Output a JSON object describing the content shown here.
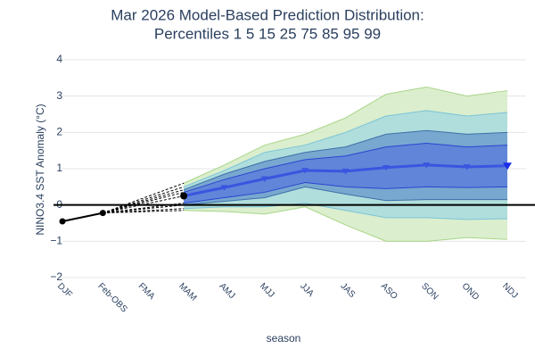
{
  "chart_data": {
    "type": "fan",
    "title": [
      "Mar 2026 Model-Based Prediction Distribution:",
      "Percentiles 1 5 15 25 75 85 95 99"
    ],
    "x_label": "season",
    "y_label": "NINO3.4 SST Anomaly (°C)",
    "categories": [
      "DJF",
      "Feb-OBS",
      "FMA",
      "MAM",
      "AMJ",
      "MJJ",
      "JJA",
      "JAS",
      "ASO",
      "SON",
      "OND",
      "NDJ"
    ],
    "ylim": [
      -2,
      4
    ],
    "yticks": [
      {
        "value": -2,
        "label": "−2"
      },
      {
        "value": -1,
        "label": "−1"
      },
      0,
      1,
      2,
      3,
      4
    ],
    "grid": true,
    "observed": {
      "color": "#000000",
      "values": [
        -0.45,
        -0.22,
        null,
        null,
        null,
        null,
        null,
        null,
        null,
        null,
        null,
        null
      ]
    },
    "bands": [
      {
        "color": "#d5ebc4",
        "edge": "#a9d68a",
        "upper": [
          null,
          null,
          null,
          0.6,
          1.1,
          1.65,
          1.95,
          2.4,
          3.05,
          3.25,
          3.0,
          3.15
        ],
        "lower": [
          null,
          null,
          null,
          -0.15,
          -0.18,
          -0.25,
          -0.05,
          -0.55,
          -1.0,
          -1.0,
          -0.9,
          -0.95
        ]
      },
      {
        "color": "#a8dade",
        "edge": "#7cc4d8",
        "upper": [
          null,
          null,
          null,
          0.5,
          0.95,
          1.45,
          1.65,
          2.0,
          2.45,
          2.6,
          2.45,
          2.55
        ],
        "lower": [
          null,
          null,
          null,
          -0.1,
          -0.05,
          -0.05,
          0.05,
          -0.15,
          -0.35,
          -0.35,
          -0.4,
          -0.38
        ]
      },
      {
        "color": "#6e9fcc",
        "edge": "#3f6fa8",
        "upper": [
          null,
          null,
          null,
          0.42,
          0.85,
          1.2,
          1.45,
          1.6,
          1.95,
          2.05,
          1.95,
          2.0
        ],
        "lower": [
          null,
          null,
          null,
          0.0,
          0.1,
          0.2,
          0.5,
          0.3,
          0.12,
          0.15,
          0.15,
          0.15
        ]
      },
      {
        "color": "#5d7fd9",
        "edge": "#2a46d0",
        "upper": [
          null,
          null,
          null,
          0.35,
          0.7,
          1.0,
          1.25,
          1.35,
          1.6,
          1.7,
          1.6,
          1.65
        ],
        "lower": [
          null,
          null,
          null,
          0.05,
          0.2,
          0.35,
          0.62,
          0.5,
          0.45,
          0.5,
          0.48,
          0.5
        ]
      }
    ],
    "median": {
      "color": "#3a55e0",
      "values": [
        null,
        null,
        null,
        0.25,
        0.48,
        0.72,
        0.95,
        0.93,
        1.03,
        1.1,
        1.05,
        1.08
      ]
    }
  }
}
